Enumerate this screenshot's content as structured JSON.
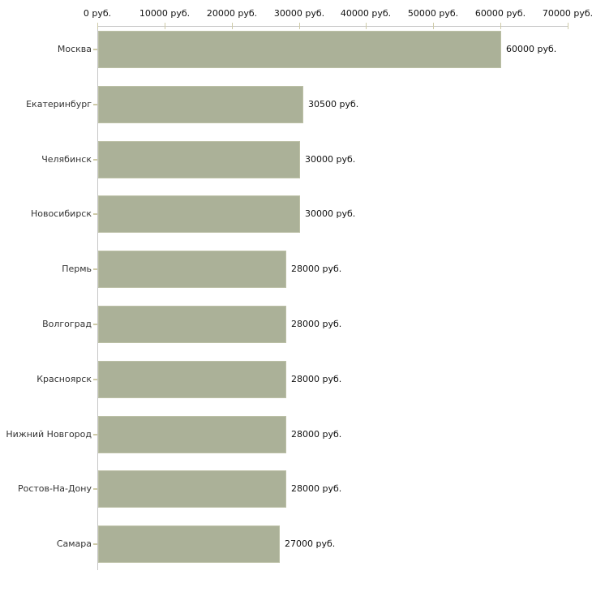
{
  "chart_data": {
    "type": "bar",
    "orientation": "horizontal",
    "title": "",
    "categories": [
      "Москва",
      "Екатеринбург",
      "Челябинск",
      "Новосибирск",
      "Пермь",
      "Волгоград",
      "Красноярск",
      "Нижний Новгород",
      "Ростов-На-Дону",
      "Самара"
    ],
    "values": [
      60000,
      30500,
      30000,
      30000,
      28000,
      28000,
      28000,
      28000,
      28000,
      27000
    ],
    "value_labels": [
      "60000 руб.",
      "30500 руб.",
      "30000 руб.",
      "30000 руб.",
      "28000 руб.",
      "28000 руб.",
      "28000 руб.",
      "28000 руб.",
      "28000 руб.",
      "27000 руб."
    ],
    "x_tick_labels": [
      "0 руб.",
      "10000 руб.",
      "20000 руб.",
      "30000 руб.",
      "40000 руб.",
      "50000 руб.",
      "60000 руб.",
      "70000 руб."
    ],
    "xlim": [
      0,
      70000
    ],
    "unit": "руб.",
    "grid": false,
    "legend": "none",
    "xlabel": "",
    "ylabel": "",
    "colors": {
      "bar_fill": "#abb198",
      "bar_border": "#bcc0a6",
      "axis_line": "#c6c6c6",
      "tick_mark": "#cfcba8",
      "category_label": "#333333",
      "value_label": "#111111",
      "background": "#ffffff"
    }
  }
}
